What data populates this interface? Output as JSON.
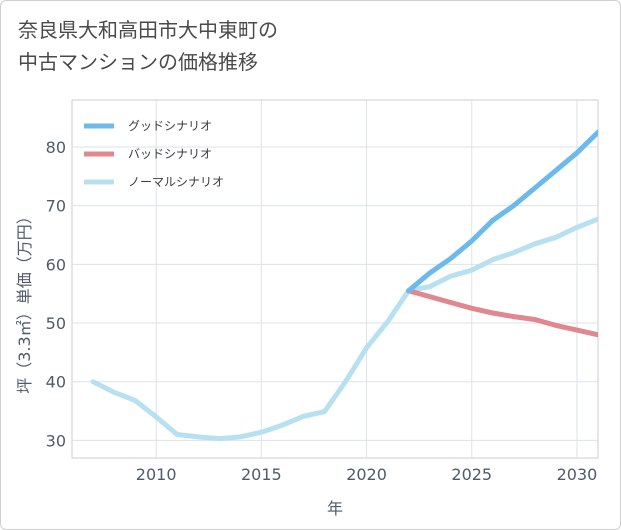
{
  "chart_data": {
    "type": "line",
    "title_lines": [
      "奈良県大和高田市大中東町の",
      "中古マンションの価格推移"
    ],
    "xlabel": "年",
    "ylabel": "坪（3.3㎡）単価（万円）",
    "xlim": [
      2006,
      2031
    ],
    "ylim": [
      27,
      88
    ],
    "x_ticks": [
      2010,
      2015,
      2020,
      2025,
      2030
    ],
    "y_ticks": [
      30,
      40,
      50,
      60,
      70,
      80
    ],
    "grid": true,
    "legend_position": "top-left",
    "series": [
      {
        "name": "グッドシナリオ",
        "color": "#6cbaed",
        "points": [
          [
            2022,
            55.5
          ],
          [
            2023,
            58.5
          ],
          [
            2024,
            61
          ],
          [
            2025,
            64
          ],
          [
            2026,
            67.5
          ],
          [
            2027,
            70
          ],
          [
            2028,
            73
          ],
          [
            2029,
            76
          ],
          [
            2030,
            79
          ],
          [
            2031,
            82.5
          ]
        ]
      },
      {
        "name": "バッドシナリオ",
        "color": "#e0878f",
        "points": [
          [
            2022,
            55.5
          ],
          [
            2023,
            54.5
          ],
          [
            2024,
            53.5
          ],
          [
            2025,
            52.5
          ],
          [
            2026,
            51.7
          ],
          [
            2027,
            51.1
          ],
          [
            2028,
            50.6
          ],
          [
            2029,
            49.6
          ],
          [
            2030,
            48.8
          ],
          [
            2031,
            48.0
          ]
        ]
      },
      {
        "name": "ノーマルシナリオ",
        "color": "#b7e0f0",
        "points": [
          [
            2007,
            40
          ],
          [
            2008,
            38.2
          ],
          [
            2009,
            36.8
          ],
          [
            2010,
            34
          ],
          [
            2011,
            31
          ],
          [
            2012,
            30.6
          ],
          [
            2013,
            30.3
          ],
          [
            2014,
            30.6
          ],
          [
            2015,
            31.4
          ],
          [
            2016,
            32.6
          ],
          [
            2017,
            34.1
          ],
          [
            2018,
            34.9
          ],
          [
            2019,
            40
          ],
          [
            2020,
            45.8
          ],
          [
            2021,
            50.2
          ],
          [
            2022,
            55.5
          ],
          [
            2023,
            56.2
          ],
          [
            2024,
            58
          ],
          [
            2025,
            59
          ],
          [
            2026,
            60.8
          ],
          [
            2027,
            62
          ],
          [
            2028,
            63.5
          ],
          [
            2029,
            64.6
          ],
          [
            2030,
            66.3
          ],
          [
            2031,
            67.7
          ]
        ]
      }
    ]
  }
}
